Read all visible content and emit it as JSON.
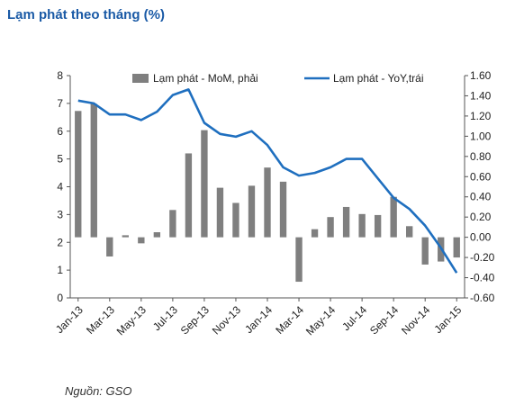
{
  "title": "Lạm phát theo tháng (%)",
  "source": "Nguồn: GSO",
  "chart_data": {
    "type": "bar+line",
    "title": "Lạm phát theo tháng (%)",
    "categories": [
      "Jan-13",
      "Feb-13",
      "Mar-13",
      "Apr-13",
      "May-13",
      "Jun-13",
      "Jul-13",
      "Aug-13",
      "Sep-13",
      "Oct-13",
      "Nov-13",
      "Dec-13",
      "Jan-14",
      "Feb-14",
      "Mar-14",
      "Apr-14",
      "May-14",
      "Jun-14",
      "Jul-14",
      "Aug-14",
      "Sep-14",
      "Oct-14",
      "Nov-14",
      "Dec-14",
      "Jan-15"
    ],
    "x_tick_labels": [
      "Jan-13",
      "Mar-13",
      "May-13",
      "Jul-13",
      "Sep-13",
      "Nov-13",
      "Jan-14",
      "Mar-14",
      "May-14",
      "Jul-14",
      "Sep-14",
      "Nov-14",
      "Jan-15"
    ],
    "left_axis": {
      "ylim": [
        0,
        8
      ],
      "ticks": [
        "0",
        "1",
        "2",
        "3",
        "4",
        "5",
        "6",
        "7",
        "8"
      ]
    },
    "right_axis": {
      "ylim": [
        -0.6,
        1.6
      ],
      "ticks": [
        "-0.60",
        "-0.40",
        "-0.20",
        "0.00",
        "0.20",
        "0.40",
        "0.60",
        "0.80",
        "1.00",
        "1.20",
        "1.40",
        "1.60"
      ]
    },
    "series": [
      {
        "name": "Lạm phát - MoM, phải",
        "type": "bar",
        "axis": "right",
        "color": "#7f7f7f",
        "values": [
          1.25,
          1.32,
          -0.19,
          0.02,
          -0.06,
          0.05,
          0.27,
          0.83,
          1.06,
          0.49,
          0.34,
          0.51,
          0.69,
          0.55,
          -0.44,
          0.08,
          0.2,
          0.3,
          0.23,
          0.22,
          0.4,
          0.11,
          -0.27,
          -0.24,
          -0.2
        ]
      },
      {
        "name": "Lạm phát - YoY,trái",
        "type": "line",
        "axis": "left",
        "color": "#1f6fbf",
        "values": [
          7.1,
          7.0,
          6.6,
          6.6,
          6.4,
          6.7,
          7.3,
          7.5,
          6.3,
          5.9,
          5.8,
          6.0,
          5.5,
          4.7,
          4.4,
          4.5,
          4.7,
          5.0,
          5.0,
          4.3,
          3.6,
          3.2,
          2.6,
          1.8,
          0.9
        ]
      }
    ],
    "legend_position": "top",
    "grid": false
  }
}
